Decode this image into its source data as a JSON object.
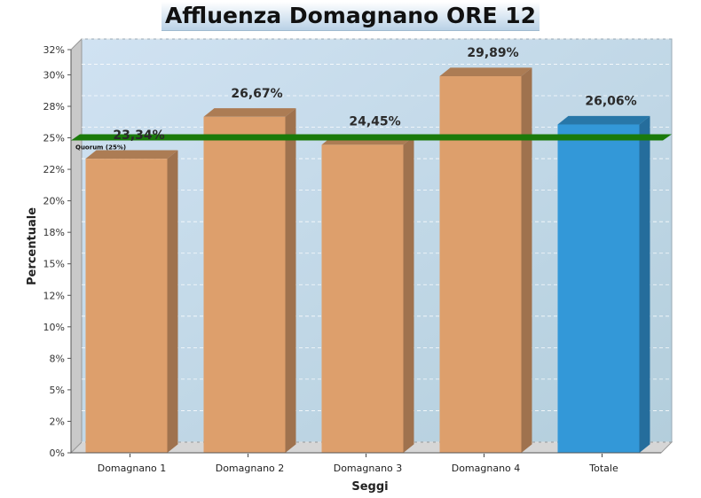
{
  "title": "Affluenza Domagnano ORE 12",
  "chart_data": {
    "type": "bar",
    "title": "Affluenza Domagnano ORE 12",
    "xlabel": "Seggi",
    "ylabel": "Percentuale",
    "categories": [
      "Domagnano 1",
      "Domagnano 2",
      "Domagnano 3",
      "Domagnano 4",
      "Totale"
    ],
    "values": [
      23.34,
      26.67,
      24.45,
      29.89,
      26.06
    ],
    "value_labels": [
      "23,34%",
      "26,67%",
      "24,45%",
      "29,89%",
      "26,06%"
    ],
    "ylim": [
      0,
      32
    ],
    "yticks": [
      0,
      2.5,
      5,
      7.5,
      10,
      12.5,
      15,
      17.5,
      20,
      22.5,
      25,
      27.5,
      30,
      32
    ],
    "ytick_labels": [
      "0%",
      "2%",
      "5%",
      "8%",
      "10%",
      "12%",
      "15%",
      "18%",
      "20%",
      "22%",
      "25%",
      "28%",
      "30%",
      "32%"
    ],
    "bar_colors": [
      "#dd9f6c",
      "#dd9f6c",
      "#dd9f6c",
      "#dd9f6c",
      "#3398d8"
    ],
    "reference_line": {
      "value": 25,
      "label": "Quorum (25%)",
      "color": "#1a7a0a"
    },
    "grid": true,
    "legend": "none"
  }
}
